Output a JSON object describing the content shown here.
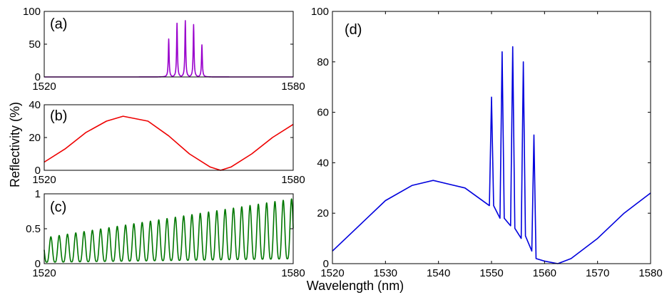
{
  "chart_data": [
    {
      "type": "line",
      "panel_label": "(a)",
      "xlim": [
        1520,
        1580
      ],
      "ylim": [
        0,
        100
      ],
      "xticks": [
        "1520",
        "1580"
      ],
      "yticks": [
        "0",
        "50",
        "100"
      ],
      "color": "#9900cc",
      "peaks": [
        {
          "x": 1550,
          "y": 58
        },
        {
          "x": 1552,
          "y": 82
        },
        {
          "x": 1554,
          "y": 86
        },
        {
          "x": 1556,
          "y": 80
        },
        {
          "x": 1558,
          "y": 49
        }
      ]
    },
    {
      "type": "line",
      "panel_label": "(b)",
      "xlim": [
        1520,
        1580
      ],
      "ylim": [
        0,
        40
      ],
      "xticks": [
        "1520",
        "1580"
      ],
      "yticks": [
        "0",
        "20",
        "40"
      ],
      "color": "#ee0000",
      "x": [
        1520,
        1525,
        1530,
        1535,
        1539,
        1545,
        1550,
        1555,
        1560,
        1562.5,
        1565,
        1570,
        1575,
        1580
      ],
      "y": [
        5,
        13,
        23,
        30,
        33,
        30,
        21,
        10,
        2,
        0,
        2,
        10,
        20,
        28
      ]
    },
    {
      "type": "line",
      "panel_label": "(c)",
      "xlim": [
        1520,
        1580
      ],
      "ylim": [
        0,
        1
      ],
      "xticks": [
        "1520",
        "1580"
      ],
      "yticks": [
        "0",
        "0.5",
        "1"
      ],
      "color": "#007700",
      "period_nm": 2,
      "peak_start": 0.37,
      "peak_end": 0.93
    },
    {
      "type": "line",
      "panel_label": "(d)",
      "xlim": [
        1520,
        1580
      ],
      "ylim": [
        0,
        100
      ],
      "xticks": [
        "1520",
        "1530",
        "1540",
        "1550",
        "1560",
        "1570",
        "1580"
      ],
      "yticks": [
        "0",
        "20",
        "40",
        "60",
        "80",
        "100"
      ],
      "color": "#0000dd",
      "x": [
        1520,
        1525,
        1530,
        1535,
        1539,
        1545,
        1549.6,
        1550,
        1550.4,
        1551.6,
        1552,
        1552.4,
        1553.6,
        1554,
        1554.4,
        1555.6,
        1556,
        1556.4,
        1557.6,
        1558,
        1558.4,
        1560,
        1562.5,
        1565,
        1570,
        1575,
        1580
      ],
      "y": [
        5,
        15,
        25,
        31,
        33,
        30,
        23,
        66,
        23,
        18,
        84,
        18,
        15,
        86,
        14,
        10,
        80,
        11,
        5,
        51,
        2,
        1,
        0,
        2,
        10,
        20,
        28
      ]
    }
  ],
  "ylabel": "Reflectivity (%)",
  "xlabel": "Wavelength (nm)"
}
